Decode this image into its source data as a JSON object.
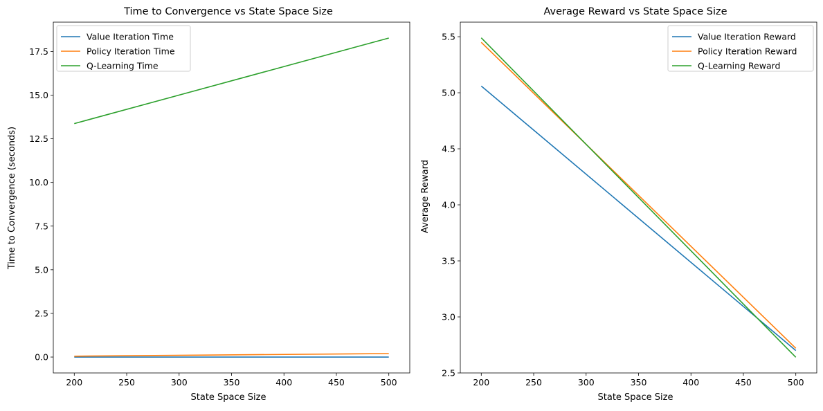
{
  "chart_data": [
    {
      "type": "line",
      "title": "Time to Convergence vs State Space Size",
      "xlabel": "State Space Size",
      "ylabel": "Time to Convergence (seconds)",
      "x": [
        200,
        500
      ],
      "xlim": [
        180,
        520
      ],
      "ylim": [
        -0.91,
        19.18
      ],
      "xticks": [
        200,
        250,
        300,
        350,
        400,
        450,
        500
      ],
      "yticks": [
        0.0,
        2.5,
        5.0,
        7.5,
        10.0,
        12.5,
        15.0,
        17.5
      ],
      "ytick_decimals": 1,
      "legend": "top-left",
      "series": [
        {
          "name": "Value Iteration Time",
          "color": "#1f77b4",
          "values": [
            0.0,
            0.0
          ]
        },
        {
          "name": "Policy Iteration Time",
          "color": "#ff7f0e",
          "values": [
            0.05,
            0.2
          ]
        },
        {
          "name": "Q-Learning Time",
          "color": "#2ca02c",
          "values": [
            13.37,
            18.27
          ]
        }
      ]
    },
    {
      "type": "line",
      "title": "Average Reward vs State Space Size",
      "xlabel": "State Space Size",
      "ylabel": "Average Reward",
      "x": [
        200,
        500
      ],
      "xlim": [
        180,
        520
      ],
      "ylim": [
        2.5,
        5.63
      ],
      "xticks": [
        200,
        250,
        300,
        350,
        400,
        450,
        500
      ],
      "yticks": [
        2.5,
        3.0,
        3.5,
        4.0,
        4.5,
        5.0,
        5.5
      ],
      "ytick_decimals": 1,
      "legend": "top-right",
      "series": [
        {
          "name": "Value Iteration Reward",
          "color": "#1f77b4",
          "values": [
            5.06,
            2.7
          ]
        },
        {
          "name": "Policy Iteration Reward",
          "color": "#ff7f0e",
          "values": [
            5.45,
            2.72
          ]
        },
        {
          "name": "Q-Learning Reward",
          "color": "#2ca02c",
          "values": [
            5.49,
            2.64
          ]
        }
      ]
    }
  ]
}
